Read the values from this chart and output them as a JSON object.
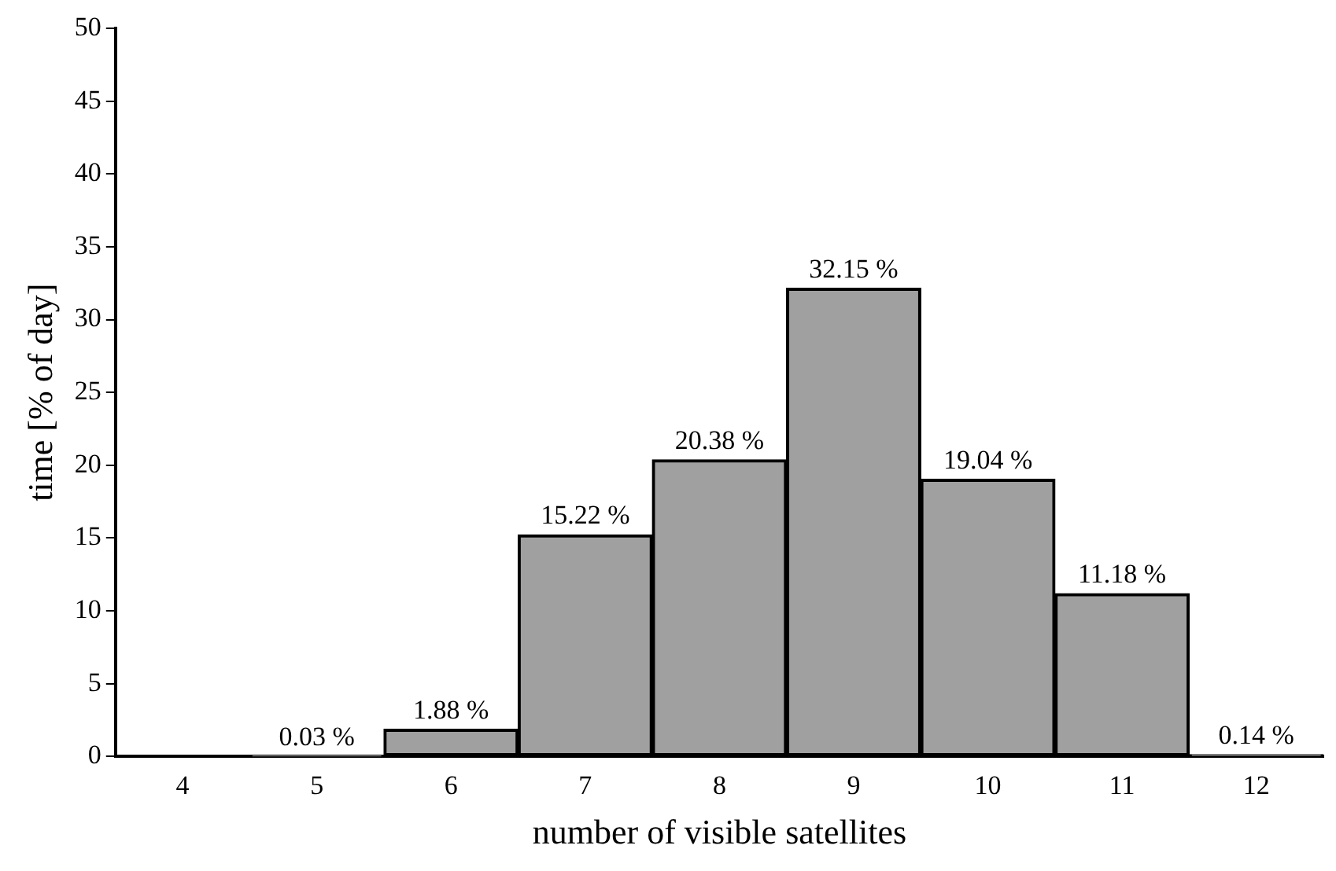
{
  "chart_data": {
    "type": "bar",
    "xlabel": "number of visible satellites",
    "ylabel": "time [% of day]",
    "categories": [
      "4",
      "5",
      "6",
      "7",
      "8",
      "9",
      "10",
      "11",
      "12"
    ],
    "values": [
      null,
      0.03,
      1.88,
      15.22,
      20.38,
      32.15,
      19.04,
      11.18,
      0.14
    ],
    "value_labels": [
      null,
      "0.03 %",
      "1.88 %",
      "15.22 %",
      "20.38 %",
      "32.15 %",
      "19.04 %",
      "11.18 %",
      "0.14 %"
    ],
    "color": "#a0a0a0",
    "ylim": [
      0,
      50
    ],
    "yticks": [
      0,
      5,
      10,
      15,
      20,
      25,
      30,
      35,
      40,
      45,
      50
    ],
    "grid": false,
    "legend": false
  }
}
